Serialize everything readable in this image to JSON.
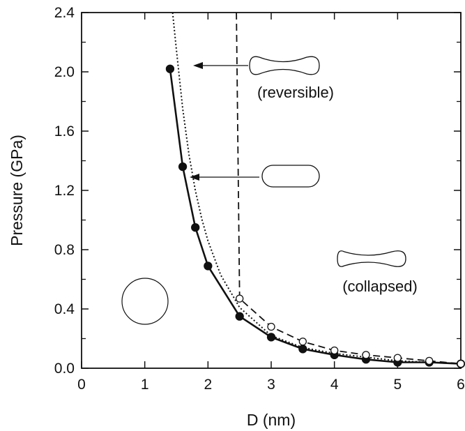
{
  "chart_data": {
    "type": "line",
    "xlabel": "D (nm)",
    "ylabel": "Pressure (GPa)",
    "xlim": [
      0,
      6
    ],
    "ylim": [
      0,
      2.4
    ],
    "xticks": [
      "0",
      "1",
      "2",
      "3",
      "4",
      "5",
      "6"
    ],
    "yticks": [
      "0.0",
      "0.4",
      "0.8",
      "1.2",
      "1.6",
      "2.0",
      "2.4"
    ],
    "grid": false,
    "legend": "none",
    "series": [
      {
        "style": "solid",
        "marker": "filled-circle",
        "x": [
          1.4,
          1.6,
          1.8,
          2.0,
          2.5,
          3.0,
          3.5,
          4.0,
          4.5,
          5.0,
          5.5,
          6.0
        ],
        "y": [
          2.02,
          1.36,
          0.95,
          0.69,
          0.35,
          0.21,
          0.13,
          0.09,
          0.06,
          0.04,
          0.04,
          0.03
        ]
      },
      {
        "style": "dotted",
        "marker": "none",
        "x": [
          1.44,
          1.5,
          1.6,
          1.7,
          1.8,
          1.9,
          2.0,
          2.2,
          2.5,
          3.0,
          3.5,
          4.0,
          5.0,
          6.0
        ],
        "y": [
          2.4,
          2.15,
          1.75,
          1.44,
          1.2,
          1.01,
          0.86,
          0.63,
          0.41,
          0.22,
          0.14,
          0.1,
          0.05,
          0.03
        ]
      },
      {
        "style": "dashed",
        "marker": "open-circle",
        "x": [
          2.45,
          2.5,
          3.0,
          3.5,
          4.0,
          4.5,
          5.0,
          5.5,
          6.0
        ],
        "y": [
          2.4,
          0.47,
          0.28,
          0.18,
          0.12,
          0.09,
          0.07,
          0.05,
          0.03
        ]
      }
    ],
    "annotations": [
      {
        "text": "(reversible)"
      },
      {
        "text": "(collapsed)"
      }
    ],
    "shapes": [
      "circle",
      "peanut",
      "oval",
      "dogbone"
    ]
  }
}
